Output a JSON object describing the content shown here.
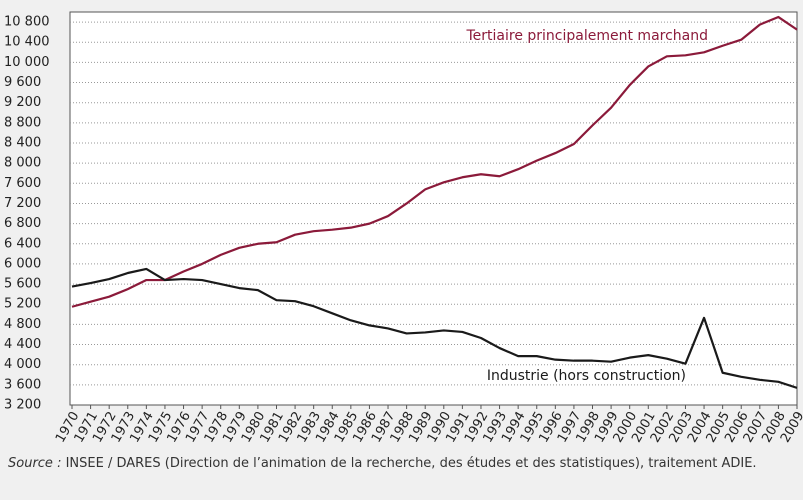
{
  "chart_data": {
    "type": "line",
    "x": [
      1970,
      1971,
      1972,
      1973,
      1974,
      1975,
      1976,
      1977,
      1978,
      1979,
      1980,
      1981,
      1982,
      1983,
      1984,
      1985,
      1986,
      1987,
      1988,
      1989,
      1990,
      1991,
      1992,
      1993,
      1994,
      1995,
      1996,
      1997,
      1998,
      1999,
      2000,
      2001,
      2002,
      2003,
      2004,
      2005,
      2006,
      2007,
      2008,
      2009
    ],
    "series": [
      {
        "name": "Tertiaire principalement marchand",
        "color": "#8b1a3a",
        "values": [
          5150,
          5250,
          5350,
          5500,
          5680,
          5680,
          5850,
          6000,
          6180,
          6320,
          6400,
          6430,
          6580,
          6650,
          6680,
          6720,
          6800,
          6950,
          7200,
          7480,
          7620,
          7720,
          7780,
          7740,
          7880,
          8050,
          8200,
          8380,
          8750,
          9100,
          9550,
          9920,
          10120,
          10140,
          10200,
          10330,
          10450,
          10750,
          10900,
          10650
        ]
      },
      {
        "name": "Industrie (hors construction)",
        "color": "#1a1a1a",
        "values": [
          5550,
          5620,
          5700,
          5820,
          5900,
          5680,
          5700,
          5680,
          5600,
          5520,
          5480,
          5280,
          5260,
          5160,
          5020,
          4880,
          4780,
          4720,
          4620,
          4640,
          4680,
          4650,
          4530,
          4330,
          4170,
          4170,
          4100,
          4080,
          4080,
          4060,
          4140,
          4190,
          4120,
          4020,
          4930,
          3840,
          3760,
          3700,
          3660,
          3540
        ]
      }
    ],
    "xlim": [
      1970,
      2009
    ],
    "xticks": [
      1970,
      1971,
      1972,
      1973,
      1974,
      1975,
      1976,
      1977,
      1978,
      1979,
      1980,
      1981,
      1982,
      1983,
      1984,
      1985,
      1986,
      1987,
      1988,
      1989,
      1990,
      1991,
      1992,
      1993,
      1994,
      1995,
      1996,
      1997,
      1998,
      1999,
      2000,
      2001,
      2002,
      2003,
      2004,
      2005,
      2006,
      2007,
      2008,
      2009
    ],
    "ylim": [
      3200,
      11000
    ],
    "yticks": [
      {
        "value": 3200,
        "label": "3 200"
      },
      {
        "value": 3600,
        "label": "3 600"
      },
      {
        "value": 4000,
        "label": "4 000"
      },
      {
        "value": 4400,
        "label": "4 400"
      },
      {
        "value": 4800,
        "label": "4 800"
      },
      {
        "value": 5200,
        "label": "5 200"
      },
      {
        "value": 5600,
        "label": "5 600"
      },
      {
        "value": 6000,
        "label": "6 000"
      },
      {
        "value": 6400,
        "label": "6 400"
      },
      {
        "value": 6800,
        "label": "6 800"
      },
      {
        "value": 7200,
        "label": "7 200"
      },
      {
        "value": 7600,
        "label": "7 600"
      },
      {
        "value": 8000,
        "label": "8 000"
      },
      {
        "value": 8400,
        "label": "8 400"
      },
      {
        "value": 8800,
        "label": "8 800"
      },
      {
        "value": 9200,
        "label": "9 200"
      },
      {
        "value": 9600,
        "label": "9 600"
      },
      {
        "value": 10000,
        "label": "10 000"
      },
      {
        "value": 10400,
        "label": "10 400"
      },
      {
        "value": 10800,
        "label": "10 800"
      }
    ],
    "grid": true,
    "source": {
      "label": "Source :",
      "text": "INSEE / DARES (Direction de l’animation de la recherche, des études et des statistiques), traitement ADIE."
    }
  }
}
